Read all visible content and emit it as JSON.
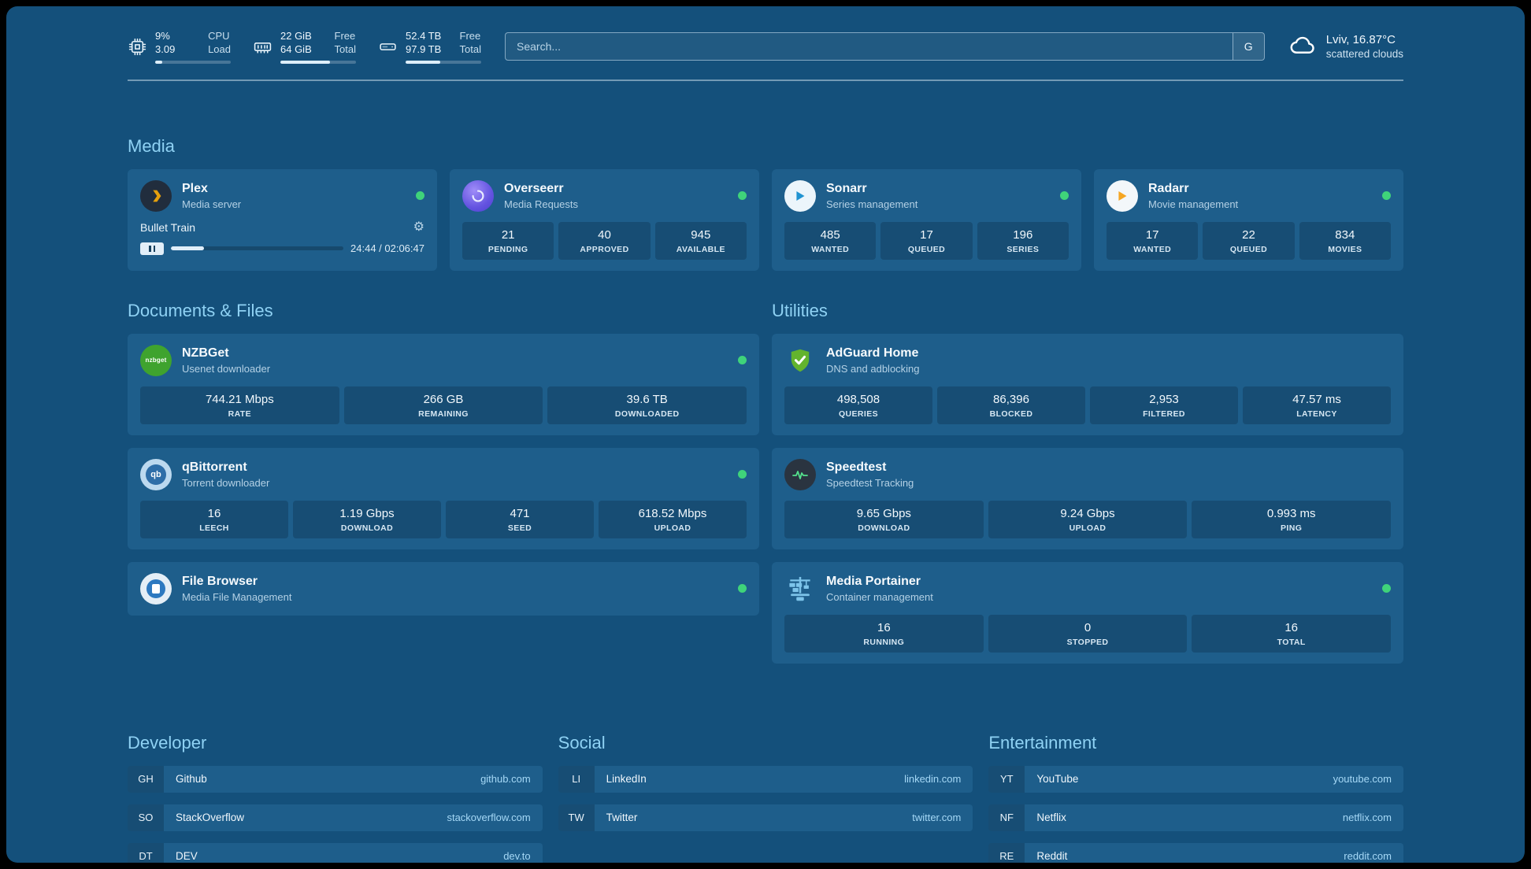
{
  "topbar": {
    "cpu": {
      "value_top": "9%",
      "value_bottom": "3.09",
      "label_top": "CPU",
      "label_bottom": "Load",
      "progress": 9
    },
    "ram": {
      "value_top": "22 GiB",
      "value_bottom": "64 GiB",
      "label_top": "Free",
      "label_bottom": "Total",
      "progress": 66
    },
    "disk": {
      "value_top": "52.4 TB",
      "value_bottom": "97.9 TB",
      "label_top": "Free",
      "label_bottom": "Total",
      "progress": 46
    },
    "search": {
      "placeholder": "Search...",
      "button_label": "G"
    },
    "weather": {
      "location": "Lviv, 16.87°C",
      "condition": "scattered clouds"
    }
  },
  "media": {
    "title": "Media",
    "plex": {
      "name": "Plex",
      "subtitle": "Media server",
      "now_playing": "Bullet Train",
      "time": "24:44 / 02:06:47",
      "progress": 19
    },
    "overseerr": {
      "name": "Overseerr",
      "subtitle": "Media Requests",
      "stats": [
        {
          "value": "21",
          "label": "PENDING"
        },
        {
          "value": "40",
          "label": "APPROVED"
        },
        {
          "value": "945",
          "label": "AVAILABLE"
        }
      ]
    },
    "sonarr": {
      "name": "Sonarr",
      "subtitle": "Series management",
      "stats": [
        {
          "value": "485",
          "label": "WANTED"
        },
        {
          "value": "17",
          "label": "QUEUED"
        },
        {
          "value": "196",
          "label": "SERIES"
        }
      ]
    },
    "radarr": {
      "name": "Radarr",
      "subtitle": "Movie management",
      "stats": [
        {
          "value": "17",
          "label": "WANTED"
        },
        {
          "value": "22",
          "label": "QUEUED"
        },
        {
          "value": "834",
          "label": "MOVIES"
        }
      ]
    }
  },
  "documents": {
    "title": "Documents & Files",
    "nzbget": {
      "name": "NZBGet",
      "subtitle": "Usenet downloader",
      "stats": [
        {
          "value": "744.21 Mbps",
          "label": "RATE"
        },
        {
          "value": "266 GB",
          "label": "REMAINING"
        },
        {
          "value": "39.6 TB",
          "label": "DOWNLOADED"
        }
      ]
    },
    "qbittorrent": {
      "name": "qBittorrent",
      "subtitle": "Torrent downloader",
      "stats": [
        {
          "value": "16",
          "label": "LEECH"
        },
        {
          "value": "1.19 Gbps",
          "label": "DOWNLOAD"
        },
        {
          "value": "471",
          "label": "SEED"
        },
        {
          "value": "618.52 Mbps",
          "label": "UPLOAD"
        }
      ]
    },
    "filebrowser": {
      "name": "File Browser",
      "subtitle": "Media File Management"
    }
  },
  "utilities": {
    "title": "Utilities",
    "adguard": {
      "name": "AdGuard Home",
      "subtitle": "DNS and adblocking",
      "stats": [
        {
          "value": "498,508",
          "label": "QUERIES"
        },
        {
          "value": "86,396",
          "label": "BLOCKED"
        },
        {
          "value": "2,953",
          "label": "FILTERED"
        },
        {
          "value": "47.57 ms",
          "label": "LATENCY"
        }
      ]
    },
    "speedtest": {
      "name": "Speedtest",
      "subtitle": "Speedtest Tracking",
      "stats": [
        {
          "value": "9.65 Gbps",
          "label": "DOWNLOAD"
        },
        {
          "value": "9.24 Gbps",
          "label": "UPLOAD"
        },
        {
          "value": "0.993 ms",
          "label": "PING"
        }
      ]
    },
    "portainer": {
      "name": "Media Portainer",
      "subtitle": "Container management",
      "stats": [
        {
          "value": "16",
          "label": "RUNNING"
        },
        {
          "value": "0",
          "label": "STOPPED"
        },
        {
          "value": "16",
          "label": "TOTAL"
        }
      ]
    }
  },
  "bookmarks": [
    {
      "title": "Developer",
      "links": [
        {
          "abbr": "GH",
          "name": "Github",
          "url": "github.com"
        },
        {
          "abbr": "SO",
          "name": "StackOverflow",
          "url": "stackoverflow.com"
        },
        {
          "abbr": "DT",
          "name": "DEV",
          "url": "dev.to"
        }
      ]
    },
    {
      "title": "Social",
      "links": [
        {
          "abbr": "LI",
          "name": "LinkedIn",
          "url": "linkedin.com"
        },
        {
          "abbr": "TW",
          "name": "Twitter",
          "url": "twitter.com"
        }
      ]
    },
    {
      "title": "Entertainment",
      "links": [
        {
          "abbr": "YT",
          "name": "YouTube",
          "url": "youtube.com"
        },
        {
          "abbr": "NF",
          "name": "Netflix",
          "url": "netflix.com"
        },
        {
          "abbr": "RE",
          "name": "Reddit",
          "url": "reddit.com"
        }
      ]
    }
  ],
  "colors": {
    "status_green": "#3fd37a",
    "heading_blue": "#8fd2f4",
    "link_blue": "#a5d8f6",
    "background": "#14507b",
    "card": "#1e5e8b"
  }
}
